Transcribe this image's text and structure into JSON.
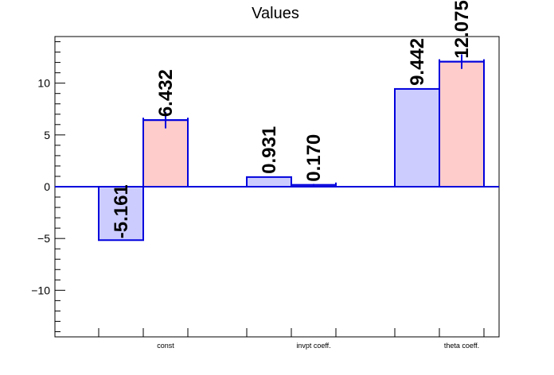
{
  "chart_data": {
    "type": "bar",
    "title": "Values",
    "categories": [
      "const",
      "invpt coeff.",
      "theta coeff."
    ],
    "series": [
      {
        "values": [
          -5.161,
          0.931,
          9.442
        ],
        "errors": [
          0,
          0,
          0
        ],
        "labels": [
          "-5.161",
          "0.931",
          "9.442"
        ]
      },
      {
        "values": [
          6.432,
          0.17,
          12.075
        ],
        "errors": [
          0.8,
          0.1,
          0.7
        ],
        "labels": [
          "6.432",
          "0.170",
          "12.075"
        ]
      }
    ],
    "ylim": [
      -14.5,
      14.5
    ],
    "yticks": [
      -10,
      -5,
      0,
      5,
      10
    ],
    "ytick_labels": [
      "−10",
      "−5",
      "0",
      "5",
      "10"
    ],
    "colors": {
      "series0_fill": "#ccccff",
      "series1_fill": "#ffcccc",
      "outline": "#0000dd",
      "zero_line": "#0000dd",
      "frame": "#000000"
    },
    "grid": false,
    "legend": "none"
  }
}
